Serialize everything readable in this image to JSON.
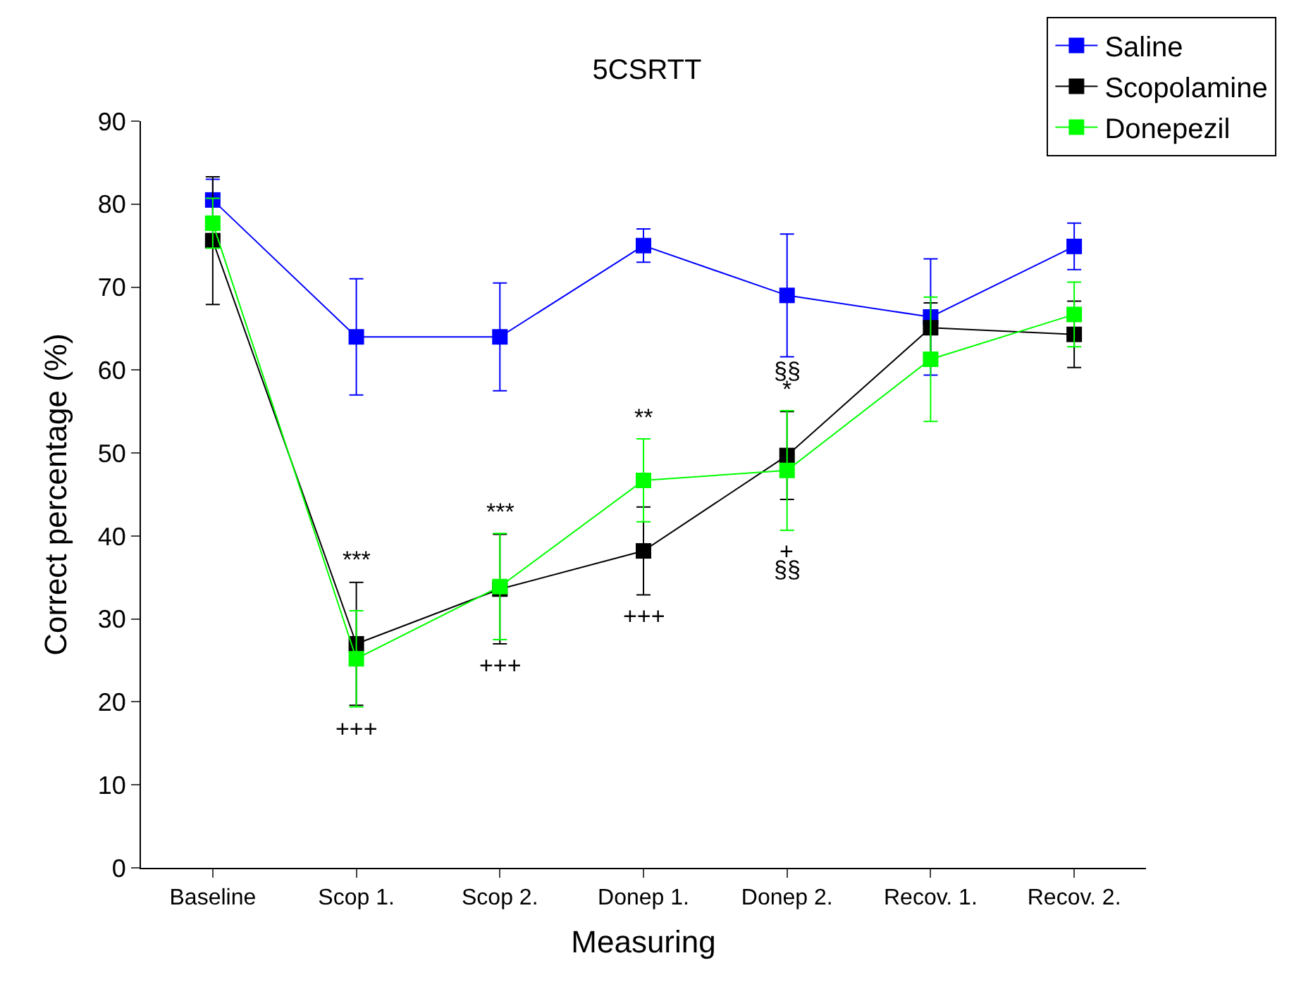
{
  "chart_data": {
    "type": "line",
    "title": "5CSRTT",
    "xlabel": "Measuring",
    "ylabel": "Correct percentage (%)",
    "categories": [
      "Baseline",
      "Scop 1.",
      "Scop 2.",
      "Donep 1.",
      "Donep 2.",
      "Recov. 1.",
      "Recov. 2."
    ],
    "series": [
      {
        "name": "Saline",
        "color": "#0000ff",
        "values": [
          80.5,
          64,
          64,
          75,
          69,
          66.4,
          74.9
        ],
        "errors": [
          2.5,
          7,
          6.5,
          2,
          7.4,
          7,
          2.8
        ]
      },
      {
        "name": "Scopolamine",
        "color": "#000000",
        "values": [
          75.6,
          27,
          33.6,
          38.2,
          49.7,
          65.1,
          64.3
        ],
        "errors": [
          7.7,
          7.4,
          6.6,
          5.3,
          5.3,
          3,
          4
        ]
      },
      {
        "name": "Donepezil",
        "color": "#00ff00",
        "values": [
          77.7,
          25.2,
          33.9,
          46.7,
          47.9,
          61.3,
          66.7
        ],
        "errors": [
          3,
          5.8,
          6.4,
          5,
          7.2,
          7.5,
          3.9
        ]
      }
    ],
    "ylim": [
      0,
      90
    ],
    "yticks": [
      0,
      10,
      20,
      30,
      40,
      50,
      60,
      70,
      80,
      90
    ],
    "legend": "top right",
    "marker": "square",
    "line_style": "solid",
    "annotations": [
      "***",
      "+++",
      "***",
      "+++",
      "**",
      "+++",
      "§§",
      "*",
      "+",
      "§§"
    ]
  }
}
